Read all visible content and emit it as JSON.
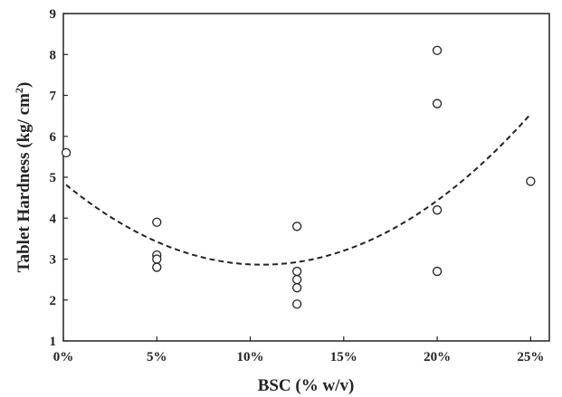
{
  "chart_data": {
    "type": "scatter",
    "title": "",
    "xlabel": "BSC (% w/v)",
    "ylabel_main": "Tablet Hardness (kg/ cm",
    "ylabel_sup": "2",
    "ylabel_close": ")",
    "x_ticks": [
      {
        "value": 0,
        "label": "0%"
      },
      {
        "value": 5,
        "label": "5%"
      },
      {
        "value": 10,
        "label": "10%"
      },
      {
        "value": 15,
        "label": "15%"
      },
      {
        "value": 20,
        "label": "20%"
      },
      {
        "value": 25,
        "label": "25%"
      }
    ],
    "y_ticks": [
      1,
      2,
      3,
      4,
      5,
      6,
      7,
      8,
      9
    ],
    "xlim": [
      0,
      26
    ],
    "ylim": [
      1,
      9
    ],
    "grid": false,
    "legend": "none",
    "points": [
      {
        "x": 0.15,
        "y": 5.6
      },
      {
        "x": 5,
        "y": 3.9
      },
      {
        "x": 5,
        "y": 3.1
      },
      {
        "x": 5,
        "y": 3.0
      },
      {
        "x": 5,
        "y": 2.8
      },
      {
        "x": 12.5,
        "y": 3.8
      },
      {
        "x": 12.5,
        "y": 2.7
      },
      {
        "x": 12.5,
        "y": 2.5
      },
      {
        "x": 12.5,
        "y": 2.3
      },
      {
        "x": 12.5,
        "y": 1.9
      },
      {
        "x": 20,
        "y": 8.1
      },
      {
        "x": 20,
        "y": 6.8
      },
      {
        "x": 20,
        "y": 4.2
      },
      {
        "x": 20,
        "y": 2.7
      },
      {
        "x": 25,
        "y": 4.9
      }
    ],
    "trendline": {
      "kind": "polynomial-2",
      "style": "dashed",
      "x_range": [
        0.15,
        25
      ],
      "coefficients": [
        4.87,
        -0.378,
        0.0178
      ]
    },
    "colors": {
      "axis": "#222222",
      "marker_stroke": "#222222",
      "trendline": "#222222"
    }
  }
}
